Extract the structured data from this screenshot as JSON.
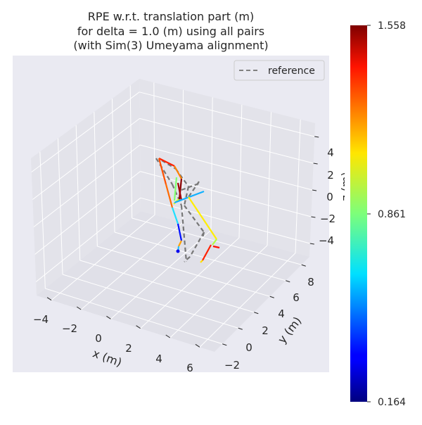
{
  "chart_data": {
    "type": "line",
    "projection": "3d",
    "title": [
      "RPE w.r.t. translation part (m)",
      "for delta = 1.0 (m) using all pairs",
      "(with Sim(3) Umeyama alignment)"
    ],
    "xlabel": "x (m)",
    "ylabel": "y (m)",
    "zlabel": "z (m)",
    "x_ticks": [
      "−4",
      "−2",
      "0",
      "2",
      "4",
      "6"
    ],
    "y_ticks": [
      "−2",
      "0",
      "2",
      "4",
      "6",
      "8"
    ],
    "z_ticks": [
      "4",
      "2",
      "0",
      "−2",
      "−4"
    ],
    "legend": {
      "placement": "top-right",
      "entries": [
        {
          "name": "reference",
          "style": "dashed",
          "color": "#808080"
        }
      ]
    },
    "colorbar": {
      "colormap": "jet",
      "min": 0.164,
      "max": 1.558,
      "ticks": [
        "1.558",
        "0.861",
        "0.164"
      ]
    },
    "grid": true,
    "background_color": "#eaeaf2"
  }
}
